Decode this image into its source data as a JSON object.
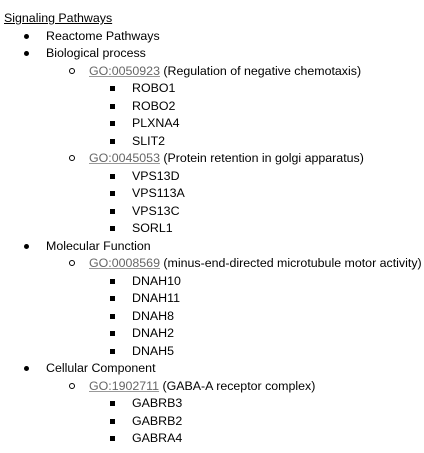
{
  "title": "Signaling Pathways",
  "sections": [
    {
      "label": "Reactome Pathways",
      "terms": []
    },
    {
      "label": "Biological process",
      "terms": [
        {
          "go_id": "GO:0050923",
          "desc": " (Regulation of negative chemotaxis)",
          "genes": [
            "ROBO1",
            "ROBO2",
            "PLXNA4",
            "SLIT2"
          ]
        },
        {
          "go_id": "GO:0045053",
          "desc": " (Protein retention in golgi apparatus)",
          "genes": [
            "VPS13D",
            "VPS113A",
            "VPS13C",
            "SORL1"
          ]
        }
      ]
    },
    {
      "label": "Molecular Function",
      "terms": [
        {
          "go_id": "GO:0008569",
          "desc": " (minus-end-directed microtubule motor activity)",
          "genes": [
            "DNAH10",
            "DNAH11",
            "DNAH8",
            "DNAH2",
            "DNAH5"
          ]
        }
      ]
    },
    {
      "label": "Cellular Component",
      "terms": [
        {
          "go_id": "GO:1902711",
          "desc": " (GABA-A receptor complex)",
          "genes": [
            "GABRB3",
            "GABRB2",
            "GABRA4"
          ]
        }
      ]
    }
  ]
}
